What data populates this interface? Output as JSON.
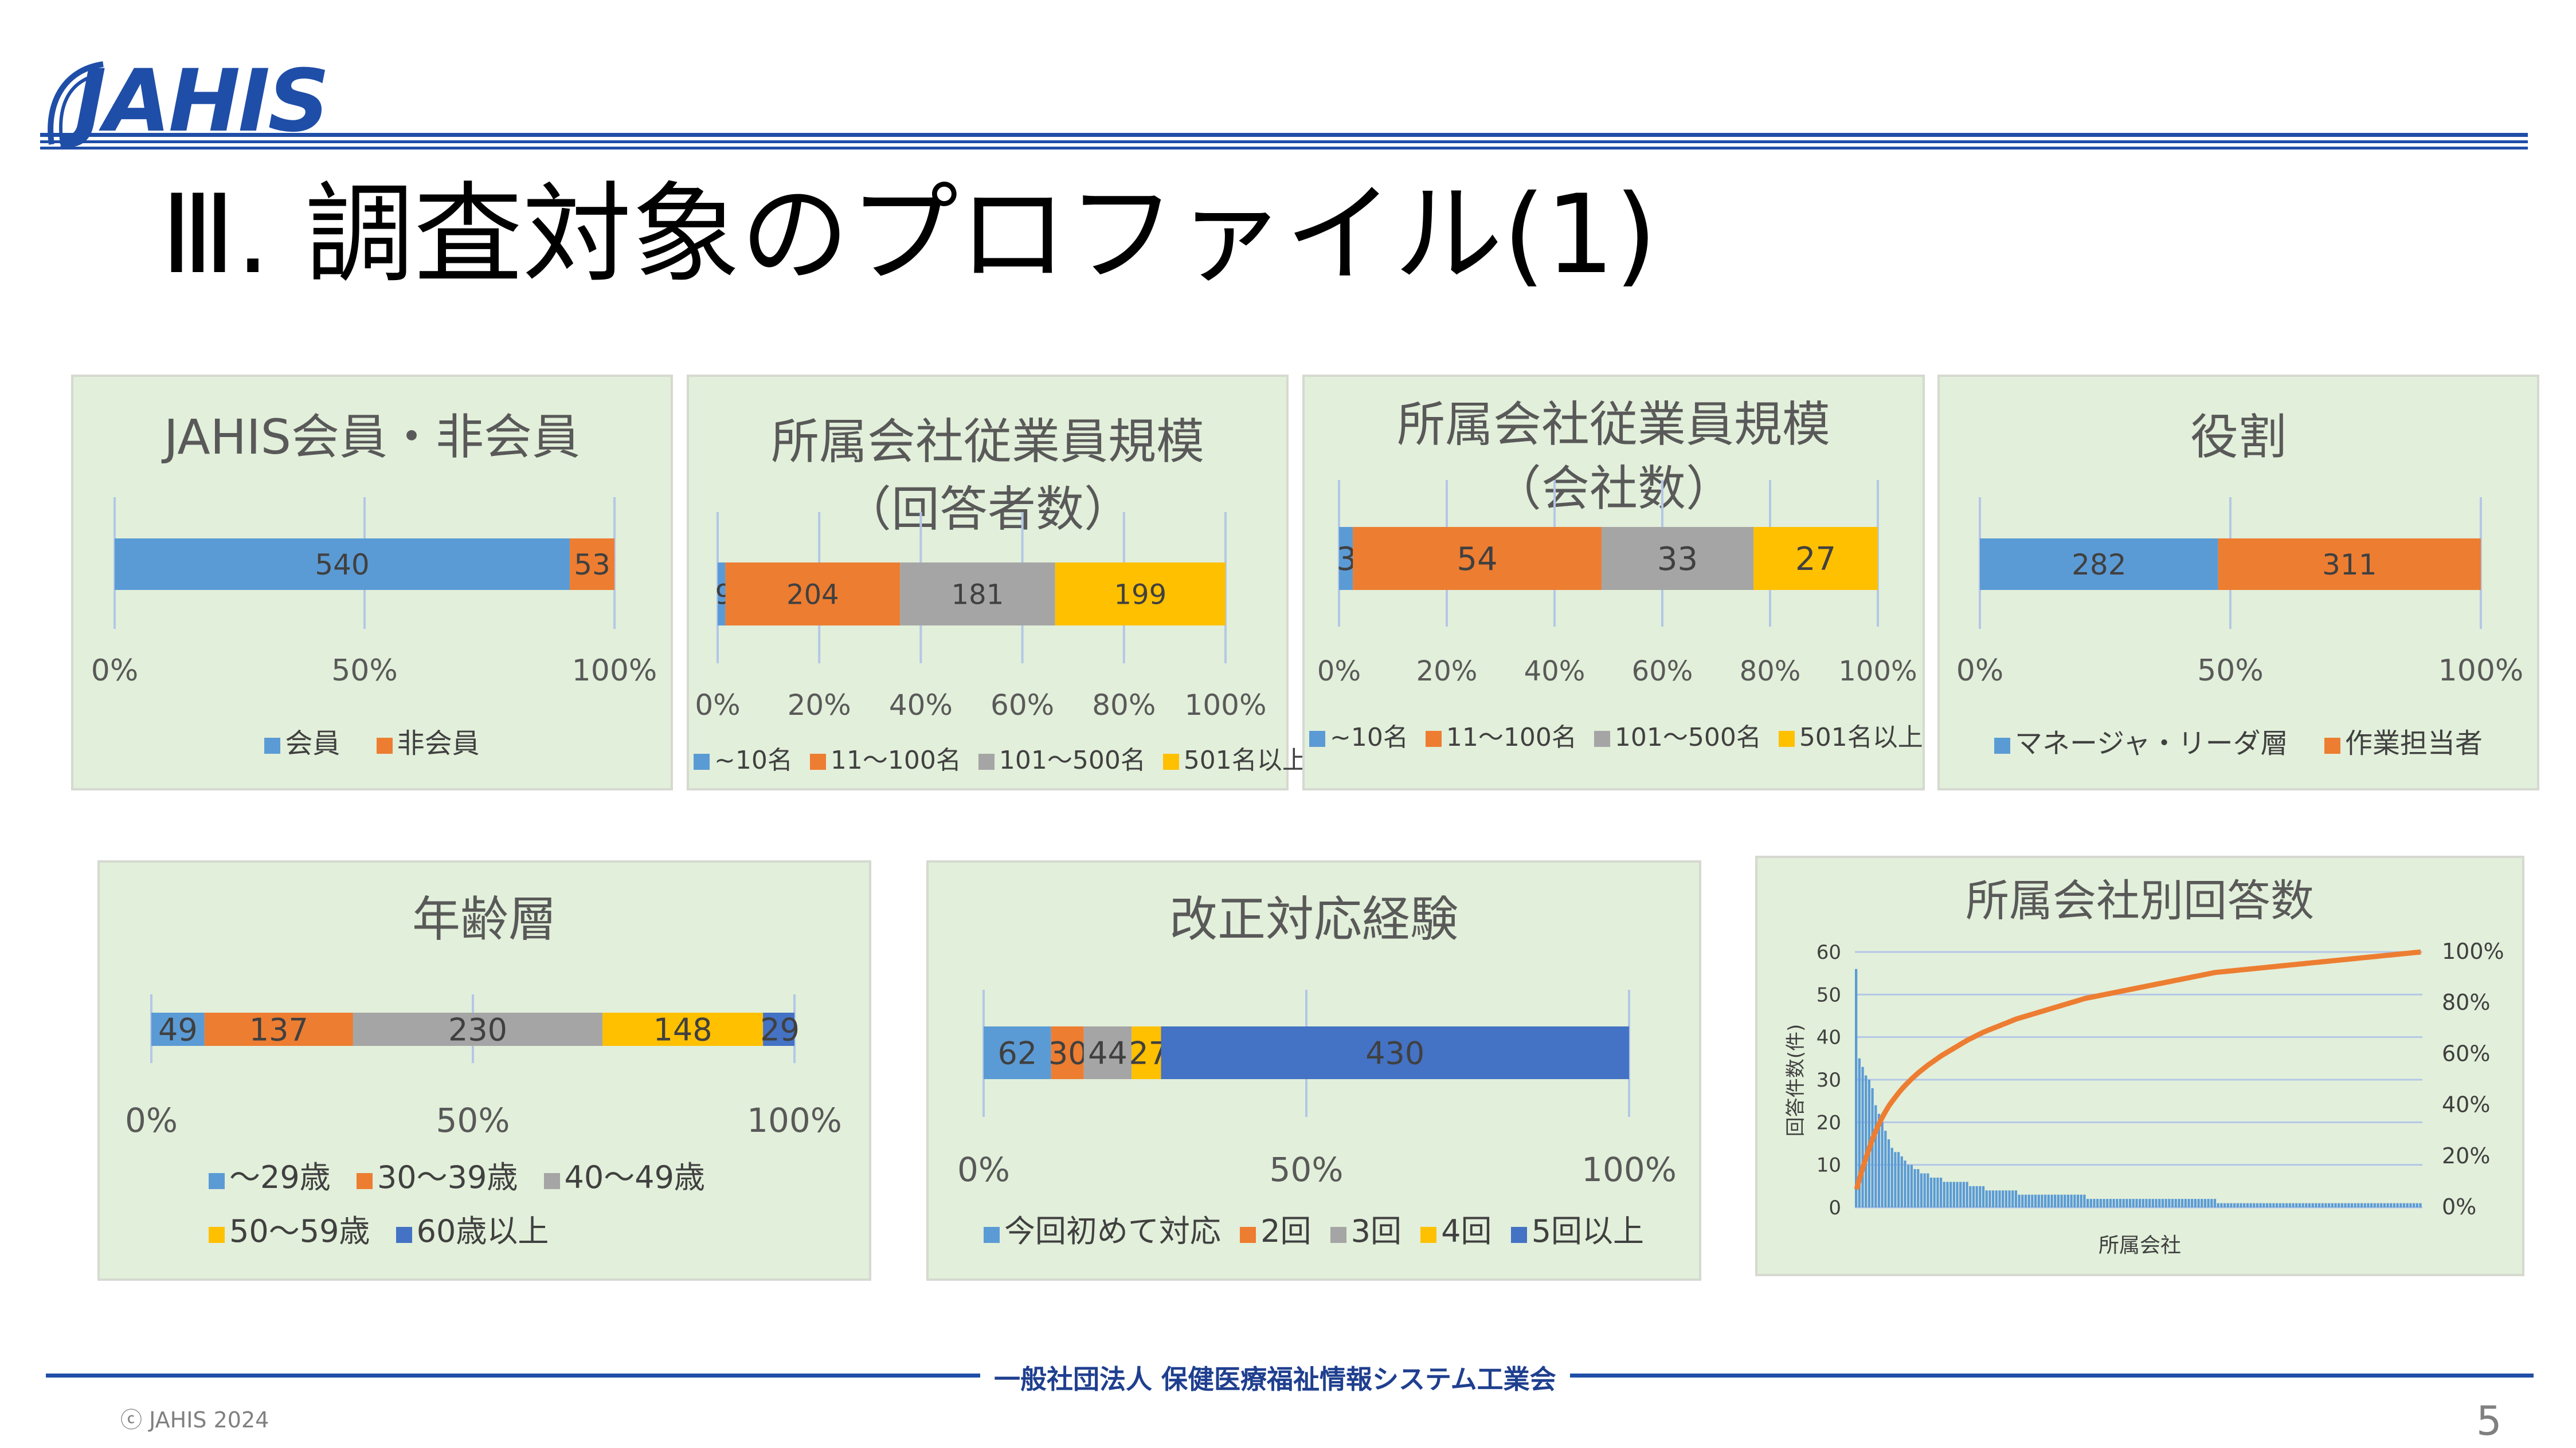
{
  "header": {
    "logo_text": "JAHIS",
    "title": "Ⅲ. 調査対象のプロファイル(1)"
  },
  "colors": {
    "blue": "#5b9bd5",
    "orange": "#ed7d31",
    "gray": "#a5a5a5",
    "yellow": "#ffc000",
    "darkblue": "#4472c4",
    "panel_bg": "#e2efda",
    "brand": "#1f4ea8"
  },
  "charts": {
    "member": {
      "title": "JAHIS会員・非会員",
      "ticks": [
        "0%",
        "50%",
        "100%"
      ],
      "legend": [
        "会員",
        "非会員"
      ]
    },
    "size_resp": {
      "title_line1": "所属会社従業員規模",
      "title_line2": "（回答者数）",
      "ticks": [
        "0%",
        "20%",
        "40%",
        "60%",
        "80%",
        "100%"
      ],
      "legend": [
        "~10名",
        "11～100名",
        "101～500名",
        "501名以上"
      ]
    },
    "size_comp": {
      "title_line1": "所属会社従業員規模",
      "title_line2": "（会社数）",
      "ticks": [
        "0%",
        "20%",
        "40%",
        "60%",
        "80%",
        "100%"
      ],
      "legend": [
        "~10名",
        "11～100名",
        "101～500名",
        "501名以上"
      ]
    },
    "role": {
      "title": "役割",
      "ticks": [
        "0%",
        "50%",
        "100%"
      ],
      "legend": [
        "マネージャ・リーダ層",
        "作業担当者"
      ]
    },
    "age": {
      "title": "年齢層",
      "ticks": [
        "0%",
        "50%",
        "100%"
      ],
      "legend_row1": [
        "～29歳",
        "30～39歳",
        "40～49歳"
      ],
      "legend_row2": [
        "50～59歳",
        "60歳以上"
      ]
    },
    "revision": {
      "title": "改正対応経験",
      "ticks": [
        "0%",
        "50%",
        "100%"
      ],
      "legend": [
        "今回初めて対応",
        "2回",
        "3回",
        "4回",
        "5回以上"
      ]
    },
    "company": {
      "title": "所属会社別回答数",
      "ylabel": "回答件数(件)",
      "xlabel": "所属会社",
      "left_ticks": [
        "0",
        "10",
        "20",
        "30",
        "40",
        "50",
        "60"
      ],
      "right_ticks": [
        "0%",
        "20%",
        "40%",
        "60%",
        "80%",
        "100%"
      ]
    }
  },
  "chart_data": [
    {
      "type": "bar",
      "orientation": "horizontal-stacked-100",
      "title": "JAHIS会員・非会員",
      "series": [
        {
          "name": "会員",
          "values": [
            540
          ]
        },
        {
          "name": "非会員",
          "values": [
            53
          ]
        }
      ]
    },
    {
      "type": "bar",
      "orientation": "horizontal-stacked-100",
      "title": "所属会社従業員規模（回答者数）",
      "series": [
        {
          "name": "~10名",
          "values": [
            9
          ]
        },
        {
          "name": "11～100名",
          "values": [
            204
          ]
        },
        {
          "name": "101～500名",
          "values": [
            181
          ]
        },
        {
          "name": "501名以上",
          "values": [
            199
          ]
        }
      ]
    },
    {
      "type": "bar",
      "orientation": "horizontal-stacked-100",
      "title": "所属会社従業員規模（会社数）",
      "series": [
        {
          "name": "~10名",
          "values": [
            3
          ]
        },
        {
          "name": "11～100名",
          "values": [
            54
          ]
        },
        {
          "name": "101～500名",
          "values": [
            33
          ]
        },
        {
          "name": "501名以上",
          "values": [
            27
          ]
        }
      ]
    },
    {
      "type": "bar",
      "orientation": "horizontal-stacked-100",
      "title": "役割",
      "series": [
        {
          "name": "マネージャ・リーダ層",
          "values": [
            282
          ]
        },
        {
          "name": "作業担当者",
          "values": [
            311
          ]
        }
      ]
    },
    {
      "type": "bar",
      "orientation": "horizontal-stacked-100",
      "title": "年齢層",
      "series": [
        {
          "name": "～29歳",
          "values": [
            49
          ]
        },
        {
          "name": "30～39歳",
          "values": [
            137
          ]
        },
        {
          "name": "40～49歳",
          "values": [
            230
          ]
        },
        {
          "name": "50～59歳",
          "values": [
            148
          ]
        },
        {
          "name": "60歳以上",
          "values": [
            29
          ]
        }
      ]
    },
    {
      "type": "bar",
      "orientation": "horizontal-stacked-100",
      "title": "改正対応経験",
      "series": [
        {
          "name": "今回初めて対応",
          "values": [
            62
          ]
        },
        {
          "name": "2回",
          "values": [
            30
          ]
        },
        {
          "name": "3回",
          "values": [
            44
          ]
        },
        {
          "name": "4回",
          "values": [
            27
          ]
        },
        {
          "name": "5回以上",
          "values": [
            430
          ]
        }
      ]
    },
    {
      "type": "bar+line",
      "title": "所属会社別回答数",
      "xlabel": "所属会社",
      "ylabel": "回答件数(件)",
      "ylim": [
        0,
        60
      ],
      "y2lim": [
        0,
        1
      ],
      "values": [
        56,
        35,
        33,
        31,
        30,
        28,
        24,
        22,
        20,
        18,
        16,
        14,
        13,
        13,
        12,
        11,
        10,
        10,
        9,
        9,
        8,
        8,
        8,
        7,
        7,
        7,
        7,
        6,
        6,
        6,
        6,
        6,
        6,
        6,
        6,
        5,
        5,
        5,
        5,
        5,
        4,
        4,
        4,
        4,
        4,
        4,
        4,
        4,
        4,
        4,
        3,
        3,
        3,
        3,
        3,
        3,
        3,
        3,
        3,
        3,
        3,
        3,
        3,
        3,
        3,
        3,
        3,
        3,
        3,
        3,
        3,
        2,
        2,
        2,
        2,
        2,
        2,
        2,
        2,
        2,
        2,
        2,
        2,
        2,
        2,
        2,
        2,
        2,
        2,
        2,
        2,
        2,
        2,
        2,
        2,
        2,
        2,
        2,
        2,
        2,
        2,
        2,
        2,
        2,
        2,
        2,
        2,
        2,
        2,
        2,
        2,
        1,
        1,
        1,
        1,
        1,
        1,
        1,
        1,
        1,
        1,
        1,
        1,
        1,
        1,
        1,
        1,
        1,
        1,
        1,
        1,
        1,
        1,
        1,
        1,
        1,
        1,
        1,
        1,
        1,
        1,
        1,
        1,
        1,
        1,
        1,
        1,
        1,
        1,
        1,
        1,
        1,
        1,
        1,
        1,
        1,
        1,
        1,
        1,
        1,
        1,
        1,
        1,
        1,
        1,
        1,
        1,
        1,
        1,
        1,
        1,
        1,
        1,
        1
      ]
    }
  ],
  "footer": {
    "org": "一般社団法人 保健医療福祉情報システム工業会",
    "copyright": "ⓒ JAHIS 2024",
    "page": "5"
  }
}
